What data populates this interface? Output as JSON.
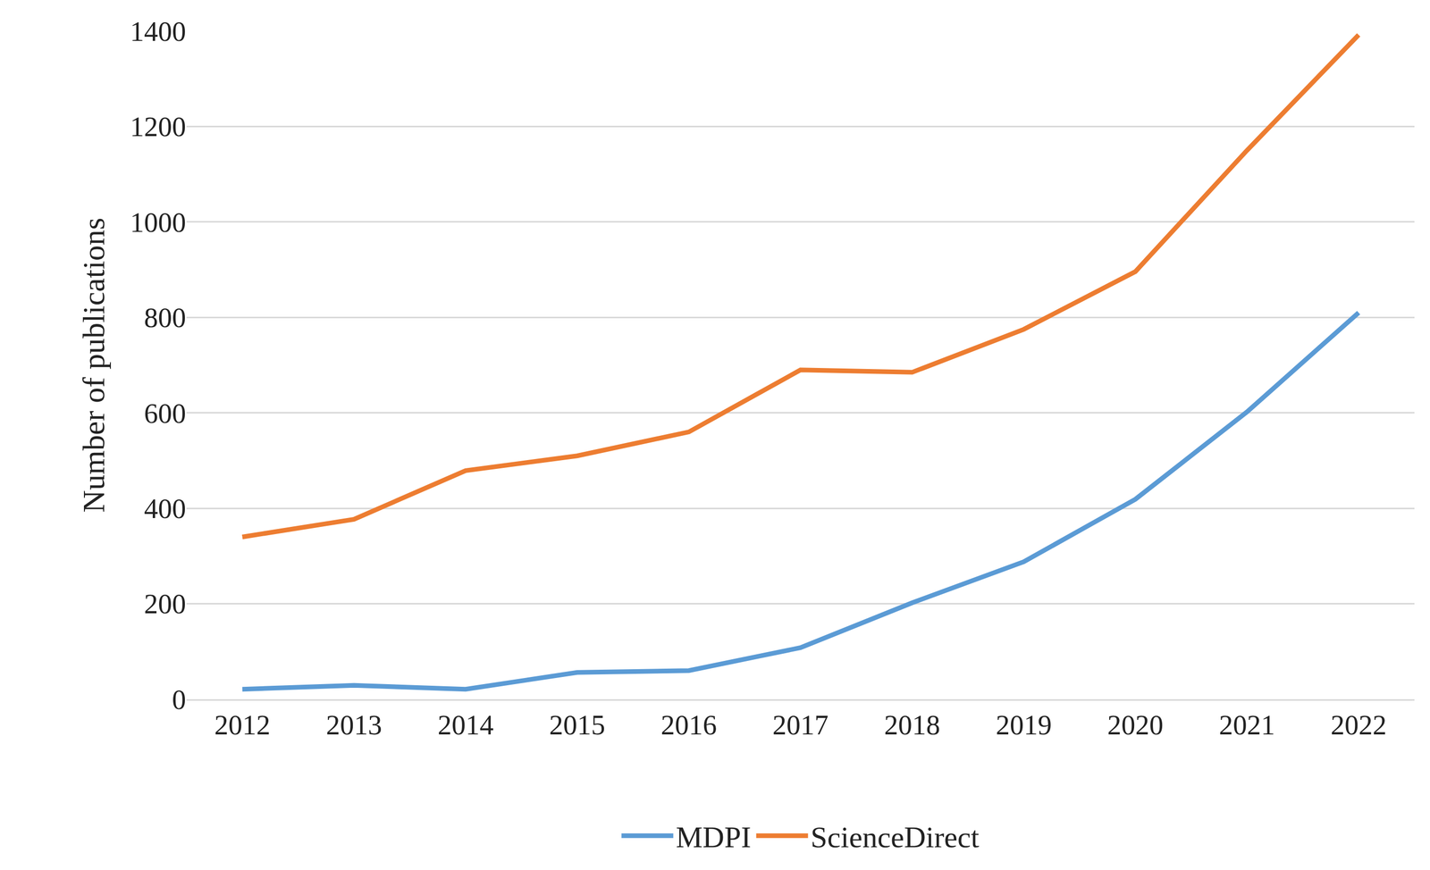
{
  "chart_data": {
    "type": "line",
    "y_label": "Number of publications",
    "categories": [
      "2012",
      "2013",
      "2014",
      "2015",
      "2016",
      "2017",
      "2018",
      "2019",
      "2020",
      "2021",
      "2022"
    ],
    "series": [
      {
        "name": "MDPI",
        "color": "#5b9bd5",
        "values": [
          21,
          29,
          21,
          56,
          60,
          108,
          202,
          288,
          419,
          602,
          810
        ]
      },
      {
        "name": "ScienceDirect",
        "color": "#ed7d31",
        "values": [
          340,
          377,
          479,
          510,
          560,
          690,
          685,
          775,
          896,
          1150,
          1392
        ]
      }
    ],
    "ylim": [
      0,
      1400
    ],
    "yticks": [
      0,
      200,
      400,
      600,
      800,
      1000,
      1200,
      1400
    ],
    "grid": true,
    "legend": "bottom"
  }
}
